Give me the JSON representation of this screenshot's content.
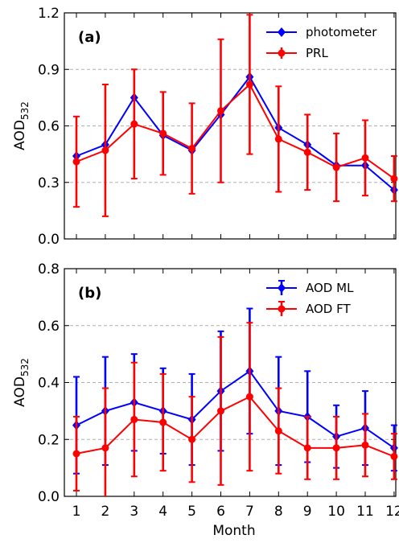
{
  "chart_data": [
    {
      "type": "line",
      "panel_label": "(a)",
      "x": [
        1,
        2,
        3,
        4,
        5,
        6,
        7,
        8,
        9,
        10,
        11,
        12
      ],
      "ylabel": "AOD",
      "ylabel_sub": "532",
      "xlabel": "",
      "ylim": [
        0,
        1.2
      ],
      "yticks": [
        "0.0",
        "0.3",
        "0.6",
        "0.9",
        "1.2"
      ],
      "grid": "horizontal dashed",
      "legend_position": "top-right",
      "series": [
        {
          "name": "photometer",
          "color": "#0000ff",
          "marker": "diamond",
          "values": [
            0.44,
            0.5,
            0.75,
            0.55,
            0.47,
            0.66,
            0.86,
            0.59,
            0.5,
            0.39,
            0.39,
            0.26
          ],
          "errors": []
        },
        {
          "name": "PRL",
          "color": "#ff0000",
          "marker": "circle",
          "values": [
            0.41,
            0.47,
            0.61,
            0.56,
            0.48,
            0.68,
            0.82,
            0.53,
            0.46,
            0.38,
            0.43,
            0.32
          ],
          "errors": [
            0.24,
            0.35,
            0.29,
            0.22,
            0.24,
            0.38,
            0.37,
            0.28,
            0.2,
            0.18,
            0.2,
            0.12
          ]
        }
      ]
    },
    {
      "type": "line",
      "panel_label": "(b)",
      "x": [
        1,
        2,
        3,
        4,
        5,
        6,
        7,
        8,
        9,
        10,
        11,
        12
      ],
      "ylabel": "AOD",
      "ylabel_sub": "532",
      "xlabel": "Month",
      "ylim": [
        0,
        0.8
      ],
      "yticks": [
        "0.0",
        "0.2",
        "0.4",
        "0.6",
        "0.8"
      ],
      "xticks": [
        "1",
        "2",
        "3",
        "4",
        "5",
        "6",
        "7",
        "8",
        "9",
        "10",
        "11",
        "12"
      ],
      "grid": "horizontal dashed",
      "legend_position": "top-right",
      "series": [
        {
          "name": "AOD ML",
          "color": "#0000ff",
          "marker": "diamond",
          "values": [
            0.25,
            0.3,
            0.33,
            0.3,
            0.27,
            0.37,
            0.44,
            0.3,
            0.28,
            0.21,
            0.24,
            0.17
          ],
          "errors": [
            0.17,
            0.19,
            0.17,
            0.15,
            0.16,
            0.21,
            0.22,
            0.19,
            0.16,
            0.11,
            0.13,
            0.08
          ]
        },
        {
          "name": "AOD FT",
          "color": "#ff0000",
          "marker": "circle",
          "values": [
            0.15,
            0.17,
            0.27,
            0.26,
            0.2,
            0.3,
            0.35,
            0.23,
            0.17,
            0.17,
            0.18,
            0.14
          ],
          "errors": [
            0.13,
            0.21,
            0.2,
            0.17,
            0.15,
            0.26,
            0.26,
            0.15,
            0.11,
            0.11,
            0.11,
            0.08
          ]
        }
      ]
    }
  ]
}
